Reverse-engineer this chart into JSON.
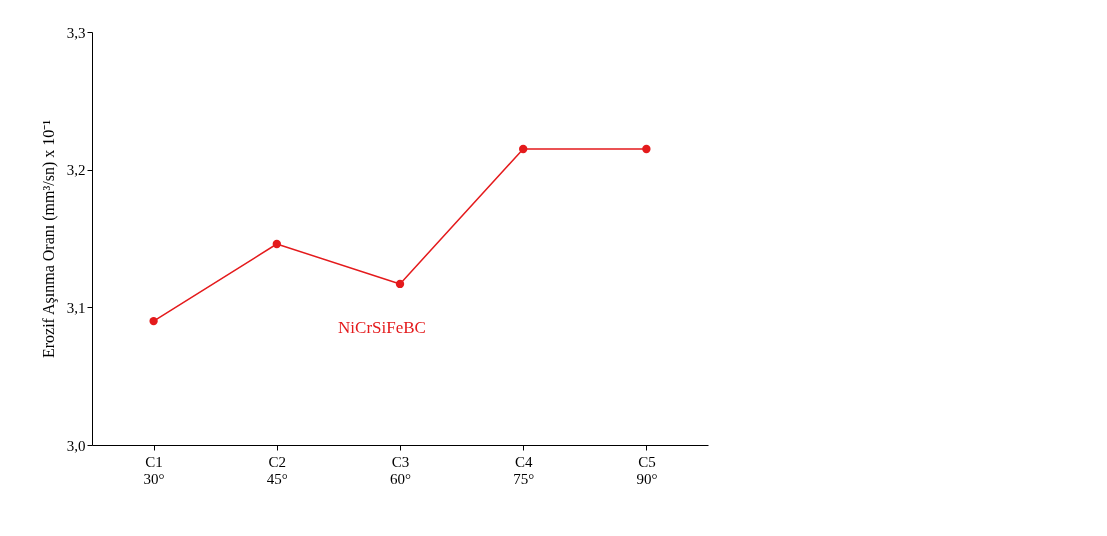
{
  "chart_data": {
    "type": "line",
    "ylabel": "Erozif Aşınma Oranı (mm³/sn) x 10⁻¹",
    "categories": [
      "C1\n30°",
      "C2\n45°",
      "C3\n60°",
      "C4\n75°",
      "C5\n90°"
    ],
    "series": [
      {
        "name": "NiCrSiFeBC",
        "color": "#e41a1c",
        "values": [
          3.09,
          3.146,
          3.117,
          3.215,
          3.215
        ]
      }
    ],
    "ylim": [
      3.0,
      3.3
    ],
    "yticks": [
      {
        "value": 3.0,
        "label": "3,0"
      },
      {
        "value": 3.1,
        "label": "3,1"
      },
      {
        "value": 3.2,
        "label": "3,2"
      },
      {
        "value": 3.3,
        "label": "3,3"
      }
    ],
    "grid": false,
    "marker": "circle",
    "line_style": "solid",
    "legend": false
  }
}
